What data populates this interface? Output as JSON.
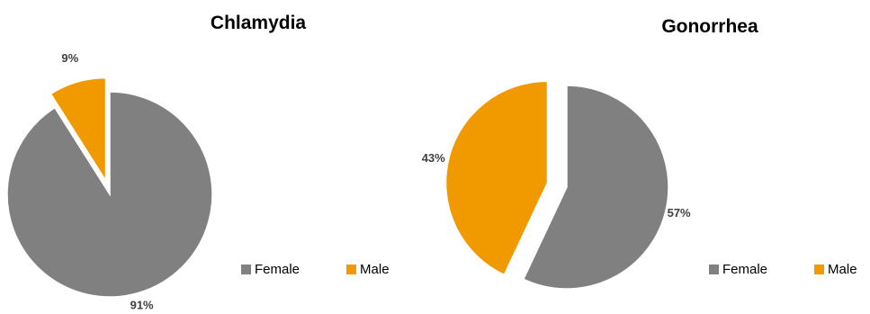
{
  "chart_data": [
    {
      "type": "pie",
      "title": "Chlamydia",
      "slices": [
        {
          "label": "Female",
          "value": 91,
          "display": "91%",
          "color": "#808080"
        },
        {
          "label": "Male",
          "value": 9,
          "display": "9%",
          "color": "#f09a00",
          "exploded": true
        }
      ],
      "legend": {
        "position": "bottom-right",
        "entries": [
          "Female",
          "Male"
        ]
      }
    },
    {
      "type": "pie",
      "title": "Gonorrhea",
      "slices": [
        {
          "label": "Female",
          "value": 57,
          "display": "57%",
          "color": "#808080"
        },
        {
          "label": "Male",
          "value": 43,
          "display": "43%",
          "color": "#f09a00",
          "exploded": true
        }
      ],
      "legend": {
        "position": "bottom-right",
        "entries": [
          "Female",
          "Male"
        ]
      }
    }
  ]
}
